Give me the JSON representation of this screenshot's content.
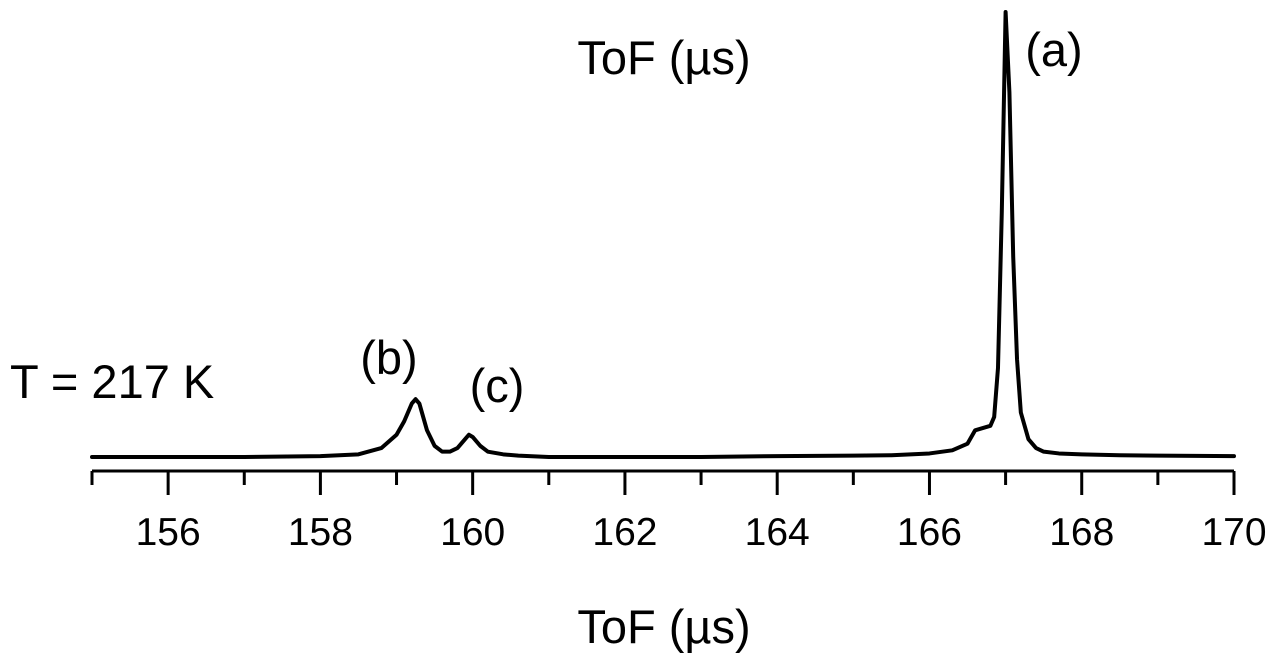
{
  "chart_data": {
    "type": "line",
    "title": "ToF (µs)",
    "xlabel": "ToF (µs)",
    "ylabel": "",
    "xlim": [
      155,
      170
    ],
    "ylim": [
      0,
      1
    ],
    "x_ticks": [
      156,
      158,
      160,
      162,
      164,
      166,
      168,
      170
    ],
    "x_tick_labels": [
      "156",
      "158",
      "160",
      "162",
      "164",
      "166",
      "168",
      "170"
    ],
    "grid": false,
    "legend": "none",
    "annotations": [
      {
        "text": "T = 217 K"
      },
      {
        "text": "(a)",
        "x": 167.0
      },
      {
        "text": "(b)",
        "x": 159.25
      },
      {
        "text": "(c)",
        "x": 159.95
      }
    ],
    "series": [
      {
        "color": "#000000",
        "x": [
          155.0,
          156.0,
          157.0,
          158.0,
          158.5,
          158.8,
          159.0,
          159.1,
          159.2,
          159.25,
          159.3,
          159.4,
          159.5,
          159.6,
          159.7,
          159.8,
          159.9,
          159.95,
          160.0,
          160.1,
          160.2,
          160.4,
          160.6,
          161.0,
          162.0,
          163.0,
          164.0,
          165.0,
          165.5,
          166.0,
          166.3,
          166.5,
          166.6,
          166.7,
          166.8,
          166.85,
          166.9,
          166.95,
          167.0,
          167.05,
          167.1,
          167.15,
          167.2,
          167.3,
          167.4,
          167.5,
          167.7,
          168.0,
          168.5,
          169.0,
          170.0
        ],
        "y": [
          0.0,
          0.0,
          0.0,
          0.002,
          0.006,
          0.02,
          0.05,
          0.08,
          0.12,
          0.13,
          0.12,
          0.06,
          0.025,
          0.012,
          0.012,
          0.02,
          0.04,
          0.05,
          0.045,
          0.025,
          0.012,
          0.006,
          0.003,
          0.0,
          0.0,
          0.0,
          0.002,
          0.003,
          0.004,
          0.008,
          0.015,
          0.03,
          0.06,
          0.065,
          0.07,
          0.09,
          0.2,
          0.55,
          1.0,
          0.82,
          0.45,
          0.22,
          0.1,
          0.04,
          0.02,
          0.012,
          0.008,
          0.006,
          0.004,
          0.003,
          0.002
        ]
      }
    ]
  }
}
